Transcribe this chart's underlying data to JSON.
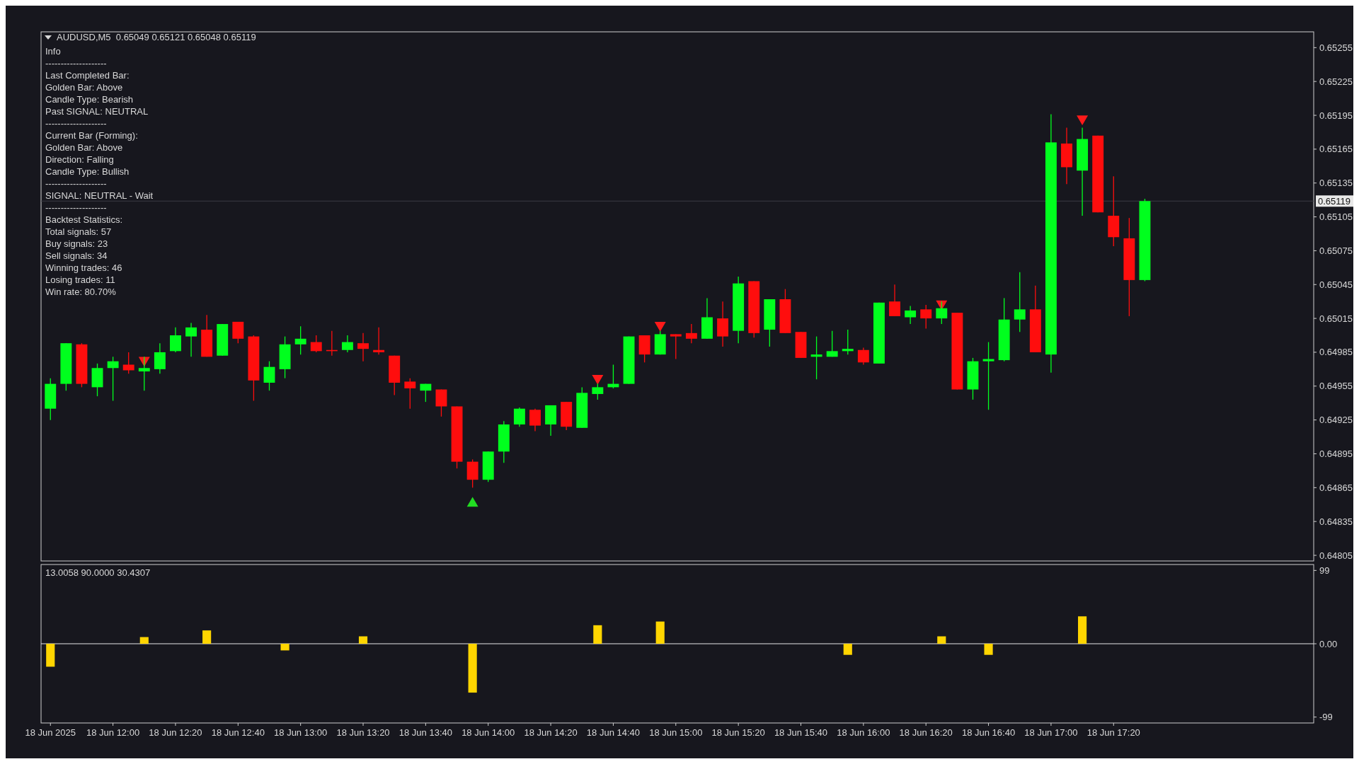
{
  "chart_data": [
    {
      "type": "candlestick",
      "title": "AUDUSD,M5  0.65049 0.65121 0.65048 0.65119",
      "annotations": [
        "Info",
        "--------------------",
        "Last Completed Bar:",
        "Golden Bar: Above",
        "Candle Type: Bearish",
        "Past SIGNAL: NEUTRAL",
        "--------------------",
        "Current Bar (Forming):",
        "Golden Bar: Above",
        "Direction: Falling",
        "Candle Type: Bullish",
        "--------------------",
        "SIGNAL: NEUTRAL - Wait",
        "--------------------",
        "Backtest Statistics:",
        "Total signals: 57",
        "Buy signals: 23",
        "Sell signals: 34",
        "Winning trades: 46",
        "Losing trades: 11",
        "Win rate: 80.70%"
      ],
      "x": [
        "2025-06-18T11:40",
        "2025-06-18T11:45",
        "2025-06-18T11:50",
        "2025-06-18T11:55",
        "2025-06-18T12:00",
        "2025-06-18T12:05",
        "2025-06-18T12:10",
        "2025-06-18T12:15",
        "2025-06-18T12:20",
        "2025-06-18T12:25",
        "2025-06-18T12:30",
        "2025-06-18T12:35",
        "2025-06-18T12:40",
        "2025-06-18T12:45",
        "2025-06-18T12:50",
        "2025-06-18T12:55",
        "2025-06-18T13:00",
        "2025-06-18T13:05",
        "2025-06-18T13:10",
        "2025-06-18T13:15",
        "2025-06-18T13:20",
        "2025-06-18T13:25",
        "2025-06-18T13:30",
        "2025-06-18T13:35",
        "2025-06-18T13:40",
        "2025-06-18T13:45",
        "2025-06-18T13:50",
        "2025-06-18T13:55",
        "2025-06-18T14:00",
        "2025-06-18T14:05",
        "2025-06-18T14:10",
        "2025-06-18T14:15",
        "2025-06-18T14:20",
        "2025-06-18T14:25",
        "2025-06-18T14:30",
        "2025-06-18T14:35",
        "2025-06-18T14:40",
        "2025-06-18T14:45",
        "2025-06-18T14:50",
        "2025-06-18T14:55",
        "2025-06-18T15:00",
        "2025-06-18T15:05",
        "2025-06-18T15:10",
        "2025-06-18T15:15",
        "2025-06-18T15:20",
        "2025-06-18T15:25",
        "2025-06-18T15:30",
        "2025-06-18T15:35",
        "2025-06-18T15:40",
        "2025-06-18T15:45",
        "2025-06-18T15:50",
        "2025-06-18T15:55",
        "2025-06-18T16:00",
        "2025-06-18T16:05",
        "2025-06-18T16:10",
        "2025-06-18T16:15",
        "2025-06-18T16:20",
        "2025-06-18T16:25",
        "2025-06-18T16:30",
        "2025-06-18T16:35",
        "2025-06-18T16:40",
        "2025-06-18T16:45",
        "2025-06-18T16:50",
        "2025-06-18T16:55",
        "2025-06-18T17:00",
        "2025-06-18T17:05",
        "2025-06-18T17:10",
        "2025-06-18T17:15",
        "2025-06-18T17:20",
        "2025-06-18T17:25",
        "2025-06-18T17:30"
      ],
      "ohlc": [
        [
          0.64935,
          0.64962,
          0.64925,
          0.64957
        ],
        [
          0.64957,
          0.64993,
          0.64951,
          0.64993
        ],
        [
          0.64992,
          0.64993,
          0.64954,
          0.64957
        ],
        [
          0.64954,
          0.64975,
          0.64946,
          0.64971
        ],
        [
          0.64971,
          0.64981,
          0.64942,
          0.64977
        ],
        [
          0.64974,
          0.64985,
          0.64966,
          0.64969
        ],
        [
          0.64968,
          0.64981,
          0.64951,
          0.64971
        ],
        [
          0.6497,
          0.64993,
          0.64966,
          0.64985
        ],
        [
          0.64986,
          0.65007,
          0.64985,
          0.65
        ],
        [
          0.64999,
          0.65011,
          0.64981,
          0.65007
        ],
        [
          0.65005,
          0.65018,
          0.64981,
          0.64981
        ],
        [
          0.64982,
          0.6501,
          0.64982,
          0.6501
        ],
        [
          0.65012,
          0.65012,
          0.64993,
          0.64997
        ],
        [
          0.64999,
          0.65,
          0.64942,
          0.6496
        ],
        [
          0.64958,
          0.64977,
          0.64951,
          0.64972
        ],
        [
          0.6497,
          0.64999,
          0.64962,
          0.64992
        ],
        [
          0.64992,
          0.65008,
          0.64983,
          0.64997
        ],
        [
          0.64994,
          0.65,
          0.64985,
          0.64986
        ],
        [
          0.64987,
          0.65004,
          0.64982,
          0.64986
        ],
        [
          0.64987,
          0.65,
          0.64985,
          0.64994
        ],
        [
          0.64993,
          0.65002,
          0.64977,
          0.64988
        ],
        [
          0.64987,
          0.65007,
          0.64983,
          0.64985
        ],
        [
          0.64982,
          0.64982,
          0.64947,
          0.64958
        ],
        [
          0.64959,
          0.64962,
          0.64935,
          0.64953
        ],
        [
          0.64951,
          0.64957,
          0.64941,
          0.64957
        ],
        [
          0.64952,
          0.64952,
          0.64928,
          0.64937
        ],
        [
          0.64937,
          0.64937,
          0.64882,
          0.64888
        ],
        [
          0.64888,
          0.6489,
          0.64865,
          0.64872
        ],
        [
          0.64872,
          0.64897,
          0.6487,
          0.64897
        ],
        [
          0.64897,
          0.64924,
          0.64887,
          0.64921
        ],
        [
          0.64921,
          0.64936,
          0.64919,
          0.64935
        ],
        [
          0.64934,
          0.64935,
          0.64915,
          0.6492
        ],
        [
          0.64921,
          0.64938,
          0.64911,
          0.64938
        ],
        [
          0.64941,
          0.64941,
          0.64916,
          0.64919
        ],
        [
          0.64918,
          0.64954,
          0.64918,
          0.64949
        ],
        [
          0.64948,
          0.64957,
          0.64943,
          0.64954
        ],
        [
          0.64954,
          0.64974,
          0.64953,
          0.64957
        ],
        [
          0.64957,
          0.64999,
          0.64957,
          0.64999
        ],
        [
          0.65,
          0.65,
          0.64976,
          0.64983
        ],
        [
          0.64983,
          0.65004,
          0.64983,
          0.65001
        ],
        [
          0.65001,
          0.65001,
          0.64979,
          0.64999
        ],
        [
          0.65002,
          0.6501,
          0.64993,
          0.64997
        ],
        [
          0.64997,
          0.65033,
          0.64997,
          0.65016
        ],
        [
          0.65015,
          0.6503,
          0.6499,
          0.64999
        ],
        [
          0.65004,
          0.65052,
          0.64993,
          0.65046
        ],
        [
          0.65048,
          0.65048,
          0.64998,
          0.65002
        ],
        [
          0.65005,
          0.65032,
          0.6499,
          0.65032
        ],
        [
          0.65032,
          0.65041,
          0.65002,
          0.65002
        ],
        [
          0.65003,
          0.65003,
          0.6498,
          0.6498
        ],
        [
          0.64981,
          0.64999,
          0.64961,
          0.64983
        ],
        [
          0.64981,
          0.65004,
          0.64981,
          0.64986
        ],
        [
          0.64986,
          0.65005,
          0.64983,
          0.64988
        ],
        [
          0.64987,
          0.64989,
          0.64974,
          0.64976
        ],
        [
          0.64975,
          0.65029,
          0.64975,
          0.65029
        ],
        [
          0.6503,
          0.65045,
          0.65017,
          0.65017
        ],
        [
          0.65016,
          0.65026,
          0.6501,
          0.65022
        ],
        [
          0.65023,
          0.65027,
          0.65006,
          0.65015
        ],
        [
          0.65015,
          0.6503,
          0.6501,
          0.65024
        ],
        [
          0.6502,
          0.6502,
          0.64952,
          0.64952
        ],
        [
          0.64952,
          0.6498,
          0.64943,
          0.64977
        ],
        [
          0.64977,
          0.64994,
          0.64934,
          0.64979
        ],
        [
          0.64978,
          0.65033,
          0.64977,
          0.65014
        ],
        [
          0.65014,
          0.65056,
          0.65003,
          0.65023
        ],
        [
          0.65023,
          0.65044,
          0.64985,
          0.64985
        ],
        [
          0.64983,
          0.65196,
          0.64967,
          0.65171
        ],
        [
          0.6517,
          0.65184,
          0.65134,
          0.65149
        ],
        [
          0.65146,
          0.65184,
          0.65106,
          0.65174
        ],
        [
          0.65177,
          0.65177,
          0.65109,
          0.65109
        ],
        [
          0.65106,
          0.65141,
          0.65079,
          0.65087
        ],
        [
          0.65086,
          0.65104,
          0.65017,
          0.65049
        ],
        [
          0.65049,
          0.65121,
          0.65048,
          0.65119
        ]
      ],
      "series": [
        {
          "type": "scatter",
          "color": "#ff1a1a",
          "marker": "triangle",
          "x": [
            "2025-06-18T12:10",
            "2025-06-18T14:35",
            "2025-06-18T14:55",
            "2025-06-18T16:25",
            "2025-06-18T17:10"
          ],
          "values": [
            0.64978,
            0.64962,
            0.65009,
            0.65028,
            0.65192
          ]
        },
        {
          "type": "scatter",
          "color": "#22dd22",
          "marker": "triangle",
          "x": [
            "2025-06-18T13:55"
          ],
          "values": [
            0.64851
          ]
        }
      ],
      "ref_lines": [
        {
          "axis": "y",
          "value": 0.65119,
          "label": "0.65119",
          "color": "#3c3c44"
        }
      ],
      "xlim": [
        "2025-06-18T11:37",
        "2025-06-18T18:24"
      ],
      "ylim": [
        0.648,
        0.65269
      ],
      "yticks": [
        0.65255,
        0.65225,
        0.65195,
        0.65165,
        0.65135,
        0.65105,
        0.65075,
        0.65045,
        0.65015,
        0.64985,
        0.64955,
        0.64925,
        0.64895,
        0.64865,
        0.64835,
        0.64805
      ],
      "tick_labels": "y",
      "grid": false
    },
    {
      "type": "bar",
      "title": "13.0058 90.0000 30.4307",
      "color": "#ffd500",
      "x": [
        "2025-06-18T11:40",
        "2025-06-18T12:10",
        "2025-06-18T12:30",
        "2025-06-18T12:55",
        "2025-06-18T13:20",
        "2025-06-18T13:55",
        "2025-06-18T14:35",
        "2025-06-18T14:55",
        "2025-06-18T15:55",
        "2025-06-18T16:25",
        "2025-06-18T16:40",
        "2025-06-18T17:10"
      ],
      "values": [
        -31,
        9,
        18,
        -9,
        10,
        -66,
        25,
        30,
        -15,
        10,
        -15,
        37
      ],
      "ref_lines": [
        {
          "axis": "y",
          "value": 0,
          "color": "#e8e8e8"
        }
      ],
      "xlim": [
        "2025-06-18T11:37",
        "2025-06-18T18:24"
      ],
      "ylim": [
        -107,
        107
      ],
      "yticks": [
        99,
        {
          "value": 0,
          "label": "0.00"
        },
        -99
      ],
      "xticks": [
        {
          "value": "2025-06-18T11:40",
          "label": "18 Jun 2025"
        },
        {
          "value": "2025-06-18T12:00",
          "label": "18 Jun 12:00"
        },
        {
          "value": "2025-06-18T12:20",
          "label": "18 Jun 12:20"
        },
        {
          "value": "2025-06-18T12:40",
          "label": "18 Jun 12:40"
        },
        {
          "value": "2025-06-18T13:00",
          "label": "18 Jun 13:00"
        },
        {
          "value": "2025-06-18T13:20",
          "label": "18 Jun 13:20"
        },
        {
          "value": "2025-06-18T13:40",
          "label": "18 Jun 13:40"
        },
        {
          "value": "2025-06-18T14:00",
          "label": "18 Jun 14:00"
        },
        {
          "value": "2025-06-18T14:20",
          "label": "18 Jun 14:20"
        },
        {
          "value": "2025-06-18T14:40",
          "label": "18 Jun 14:40"
        },
        {
          "value": "2025-06-18T15:00",
          "label": "18 Jun 15:00"
        },
        {
          "value": "2025-06-18T15:20",
          "label": "18 Jun 15:20"
        },
        {
          "value": "2025-06-18T15:40",
          "label": "18 Jun 15:40"
        },
        {
          "value": "2025-06-18T16:00",
          "label": "18 Jun 16:00"
        },
        {
          "value": "2025-06-18T16:20",
          "label": "18 Jun 16:20"
        },
        {
          "value": "2025-06-18T16:40",
          "label": "18 Jun 16:40"
        },
        {
          "value": "2025-06-18T17:00",
          "label": "18 Jun 17:00"
        },
        {
          "value": "2025-06-18T17:20",
          "label": "18 Jun 17:20"
        }
      ],
      "grid": false
    }
  ]
}
